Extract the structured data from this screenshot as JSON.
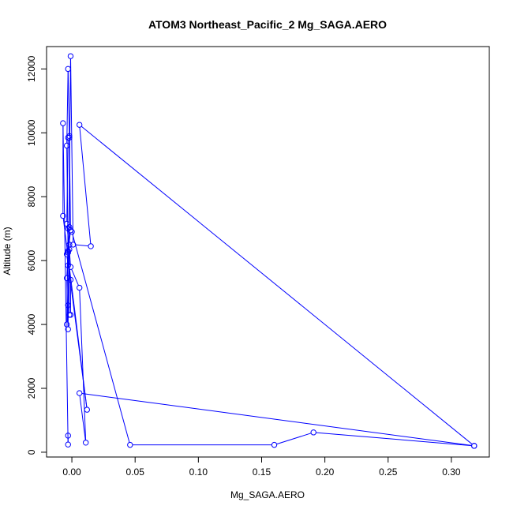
{
  "chart_data": {
    "type": "line",
    "title": "ATOM3 Northeast_Pacific_2 Mg_SAGA.AERO",
    "xlabel": "Mg_SAGA.AERO",
    "ylabel": "Altitude (m)",
    "xlim": [
      -0.02,
      0.33
    ],
    "ylim": [
      -150,
      12700
    ],
    "x_ticks": [
      0.0,
      0.05,
      0.1,
      0.15,
      0.2,
      0.25,
      0.3
    ],
    "x_tick_labels": [
      "0.00",
      "0.05",
      "0.10",
      "0.15",
      "0.20",
      "0.25",
      "0.30"
    ],
    "y_ticks": [
      0,
      2000,
      4000,
      6000,
      8000,
      10000,
      12000
    ],
    "y_tick_labels": [
      "0",
      "2000",
      "4000",
      "6000",
      "8000",
      "10000",
      "12000"
    ],
    "grid": false,
    "marker": "open-circle",
    "color": "#0000ff",
    "series": [
      {
        "x": [
          0.318,
          0.006,
          0.011,
          0.006,
          -0.001,
          -0.002,
          -0.004,
          -0.003,
          -0.002,
          -0.001,
          -0.003,
          -0.004,
          -0.003,
          -0.001,
          0.001,
          0.015,
          0.006,
          0.318,
          0.191,
          0.16,
          0.046,
          0.0,
          -0.003,
          -0.004,
          -0.003,
          -0.002,
          -0.002,
          -0.003,
          -0.004,
          -0.003,
          -0.002,
          -0.002,
          -0.001,
          -0.001,
          -0.003,
          -0.004,
          0.012,
          -0.007,
          -0.007,
          -0.003,
          -0.003
        ],
        "y": [
          200,
          1850,
          300,
          5150,
          5800,
          6350,
          7150,
          9850,
          9900,
          6950,
          6250,
          5450,
          3850,
          12400,
          6500,
          6450,
          10250,
          200,
          620,
          230,
          230,
          6900,
          7000,
          4000,
          4600,
          7050,
          9850,
          12000,
          9600,
          6300,
          6500,
          4300,
          4300,
          5400,
          5850,
          6200,
          1330,
          7400,
          10300,
          240,
          520
        ]
      }
    ]
  }
}
